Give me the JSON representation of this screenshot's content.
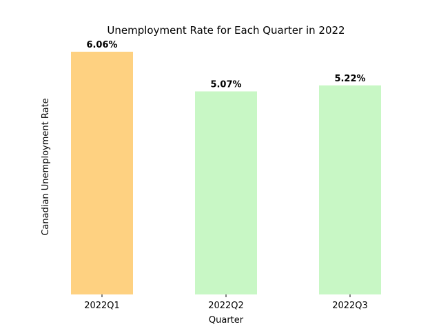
{
  "chart_data": {
    "type": "bar",
    "title": "Unemployment Rate for Each Quarter in 2022",
    "xlabel": "Quarter",
    "ylabel": "Canadian Unemployment Rate",
    "categories": [
      "2022Q1",
      "2022Q2",
      "2022Q3"
    ],
    "values": [
      6.06,
      5.07,
      5.22
    ],
    "data_labels": [
      "6.06%",
      "5.07%",
      "5.22%"
    ],
    "colors": [
      "#fed181",
      "#c8f7c5",
      "#c8f7c5"
    ],
    "ylim": [
      0,
      6.06
    ],
    "grid": false,
    "y_axis_visible": false
  }
}
